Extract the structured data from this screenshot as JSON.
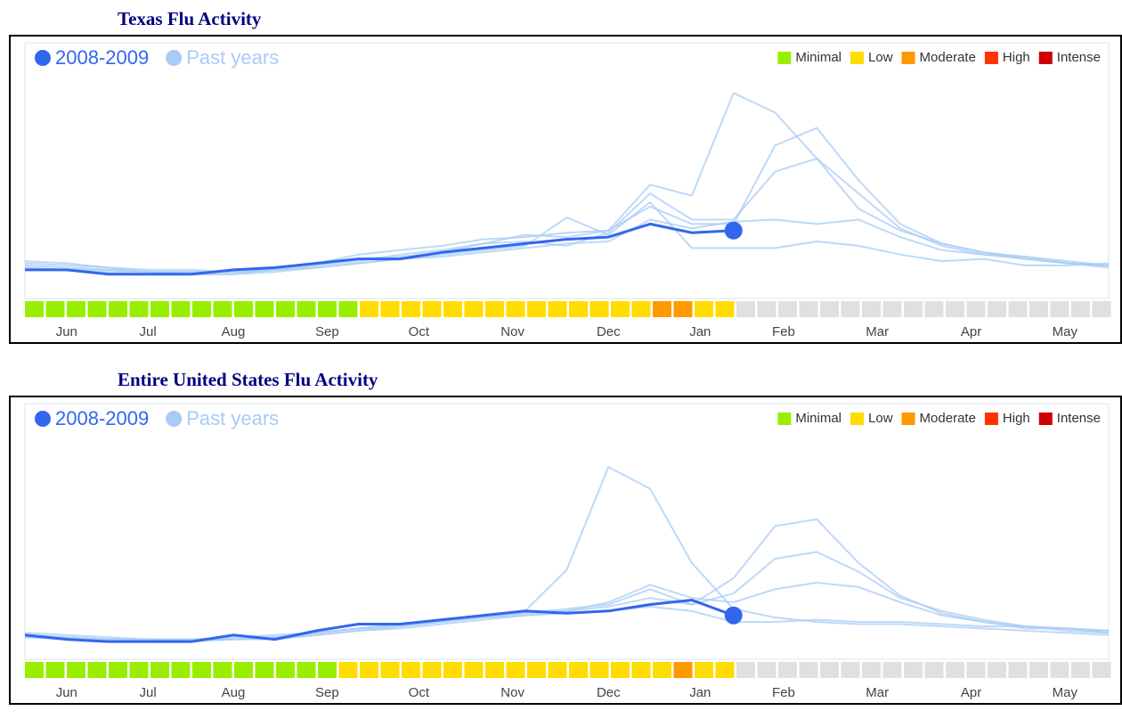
{
  "chart_data": [
    {
      "type": "line",
      "title": "Texas Flu Activity",
      "x": [
        0,
        2,
        4,
        6,
        8,
        10,
        12,
        14,
        16,
        18,
        20,
        22,
        24,
        26,
        28,
        30,
        32,
        34,
        36,
        38,
        40,
        42,
        44,
        46,
        48,
        50,
        52
      ],
      "xlim": [
        0,
        52
      ],
      "ylim": [
        0,
        100
      ],
      "xticks": [
        {
          "value": 2.0,
          "label": "Jun"
        },
        {
          "value": 5.9,
          "label": "Jul"
        },
        {
          "value": 10.0,
          "label": "Aug"
        },
        {
          "value": 14.5,
          "label": "Sep"
        },
        {
          "value": 18.9,
          "label": "Oct"
        },
        {
          "value": 23.4,
          "label": "Nov"
        },
        {
          "value": 28.0,
          "label": "Dec"
        },
        {
          "value": 32.4,
          "label": "Jan"
        },
        {
          "value": 36.4,
          "label": "Feb"
        },
        {
          "value": 40.9,
          "label": "Mar"
        },
        {
          "value": 45.4,
          "label": "Apr"
        },
        {
          "value": 49.9,
          "label": "May"
        }
      ],
      "series": [
        {
          "name": "2008-2009",
          "color": "#3366ee",
          "values": [
            7,
            7,
            5,
            5,
            5,
            7,
            8,
            10,
            12,
            12,
            15,
            17,
            19,
            21,
            22,
            28,
            24,
            25,
            null,
            null,
            null,
            null,
            null,
            null,
            null,
            null,
            null
          ]
        }
      ],
      "past_years": {
        "name": "Past years",
        "color": "#a8ccf5",
        "lines": [
          [
            9,
            8,
            7,
            6,
            6,
            6,
            8,
            10,
            14,
            16,
            18,
            21,
            22,
            24,
            25,
            46,
            41,
            88,
            79,
            58,
            35,
            25,
            19,
            15,
            13,
            11,
            9
          ],
          [
            10,
            9,
            8,
            6,
            5,
            5,
            7,
            9,
            11,
            14,
            16,
            19,
            23,
            22,
            25,
            36,
            28,
            28,
            64,
            72,
            48,
            28,
            19,
            15,
            12,
            10,
            8
          ],
          [
            8,
            7,
            7,
            6,
            6,
            6,
            7,
            9,
            12,
            13,
            15,
            19,
            20,
            18,
            24,
            42,
            30,
            30,
            52,
            58,
            42,
            26,
            18,
            14,
            13,
            10,
            9
          ],
          [
            11,
            10,
            8,
            7,
            7,
            6,
            7,
            8,
            10,
            12,
            14,
            16,
            18,
            31,
            23,
            38,
            17,
            17,
            17,
            20,
            18,
            14,
            11,
            12,
            9,
            9,
            10
          ],
          [
            8,
            7,
            6,
            6,
            5,
            5,
            6,
            8,
            10,
            12,
            13,
            15,
            17,
            19,
            20,
            30,
            26,
            29,
            30,
            28,
            30,
            22,
            16,
            14,
            12,
            10,
            9
          ]
        ]
      },
      "activity_legend": [
        {
          "label": "Minimal",
          "color": "#99ee00"
        },
        {
          "label": "Low",
          "color": "#ffdd00"
        },
        {
          "label": "Moderate",
          "color": "#ff9900"
        },
        {
          "label": "High",
          "color": "#ff3300"
        },
        {
          "label": "Intense",
          "color": "#cc0000"
        }
      ],
      "no_data_color": "#e0e0e0",
      "activity": [
        0,
        0,
        0,
        0,
        0,
        0,
        0,
        0,
        0,
        0,
        0,
        0,
        0,
        0,
        0,
        0,
        1,
        1,
        1,
        1,
        1,
        1,
        1,
        1,
        1,
        1,
        1,
        1,
        1,
        1,
        2,
        2,
        1,
        1,
        null,
        null,
        null,
        null,
        null,
        null,
        null,
        null,
        null,
        null,
        null,
        null,
        null,
        null,
        null,
        null,
        null,
        null
      ]
    },
    {
      "type": "line",
      "title": "Entire United States Flu Activity",
      "x": [
        0,
        2,
        4,
        6,
        8,
        10,
        12,
        14,
        16,
        18,
        20,
        22,
        24,
        26,
        28,
        30,
        32,
        34,
        36,
        38,
        40,
        42,
        44,
        46,
        48,
        50,
        52
      ],
      "xlim": [
        0,
        52
      ],
      "ylim": [
        0,
        100
      ],
      "xticks": [
        {
          "value": 2.0,
          "label": "Jun"
        },
        {
          "value": 5.9,
          "label": "Jul"
        },
        {
          "value": 10.0,
          "label": "Aug"
        },
        {
          "value": 14.5,
          "label": "Sep"
        },
        {
          "value": 18.9,
          "label": "Oct"
        },
        {
          "value": 23.4,
          "label": "Nov"
        },
        {
          "value": 28.0,
          "label": "Dec"
        },
        {
          "value": 32.4,
          "label": "Jan"
        },
        {
          "value": 36.4,
          "label": "Feb"
        },
        {
          "value": 40.9,
          "label": "Mar"
        },
        {
          "value": 45.4,
          "label": "Apr"
        },
        {
          "value": 49.9,
          "label": "May"
        }
      ],
      "series": [
        {
          "name": "2008-2009",
          "color": "#3366ee",
          "values": [
            5,
            3,
            2,
            2,
            2,
            5,
            3,
            7,
            10,
            10,
            12,
            14,
            16,
            15,
            16,
            19,
            21,
            14,
            null,
            null,
            null,
            null,
            null,
            null,
            null,
            null,
            null
          ]
        }
      ],
      "past_years": {
        "name": "Past years",
        "color": "#a8ccf5",
        "lines": [
          [
            5,
            4,
            3,
            3,
            3,
            3,
            4,
            6,
            8,
            9,
            11,
            13,
            16,
            35,
            82,
            72,
            38,
            17,
            13,
            11,
            10,
            10,
            9,
            8,
            7,
            6,
            5
          ],
          [
            6,
            5,
            4,
            3,
            3,
            3,
            4,
            6,
            8,
            10,
            12,
            14,
            15,
            16,
            18,
            22,
            19,
            31,
            55,
            58,
            38,
            23,
            15,
            11,
            8,
            8,
            6
          ],
          [
            5,
            4,
            3,
            3,
            3,
            4,
            5,
            6,
            8,
            10,
            12,
            13,
            15,
            17,
            19,
            26,
            19,
            24,
            40,
            43,
            34,
            22,
            16,
            12,
            9,
            7,
            6
          ],
          [
            4,
            4,
            3,
            3,
            3,
            3,
            4,
            5,
            7,
            9,
            11,
            13,
            14,
            16,
            20,
            28,
            22,
            20,
            26,
            29,
            27,
            20,
            14,
            11,
            9,
            8,
            7
          ],
          [
            4,
            3,
            3,
            3,
            2,
            3,
            3,
            5,
            7,
            8,
            10,
            12,
            14,
            15,
            16,
            18,
            16,
            11,
            11,
            12,
            11,
            11,
            10,
            9,
            9,
            8,
            7
          ]
        ]
      },
      "activity_legend": [
        {
          "label": "Minimal",
          "color": "#99ee00"
        },
        {
          "label": "Low",
          "color": "#ffdd00"
        },
        {
          "label": "Moderate",
          "color": "#ff9900"
        },
        {
          "label": "High",
          "color": "#ff3300"
        },
        {
          "label": "Intense",
          "color": "#cc0000"
        }
      ],
      "no_data_color": "#e0e0e0",
      "activity": [
        0,
        0,
        0,
        0,
        0,
        0,
        0,
        0,
        0,
        0,
        0,
        0,
        0,
        0,
        0,
        1,
        1,
        1,
        1,
        1,
        1,
        1,
        1,
        1,
        1,
        1,
        1,
        1,
        1,
        1,
        1,
        2,
        1,
        1,
        null,
        null,
        null,
        null,
        null,
        null,
        null,
        null,
        null,
        null,
        null,
        null,
        null,
        null,
        null,
        null,
        null,
        null
      ]
    }
  ]
}
